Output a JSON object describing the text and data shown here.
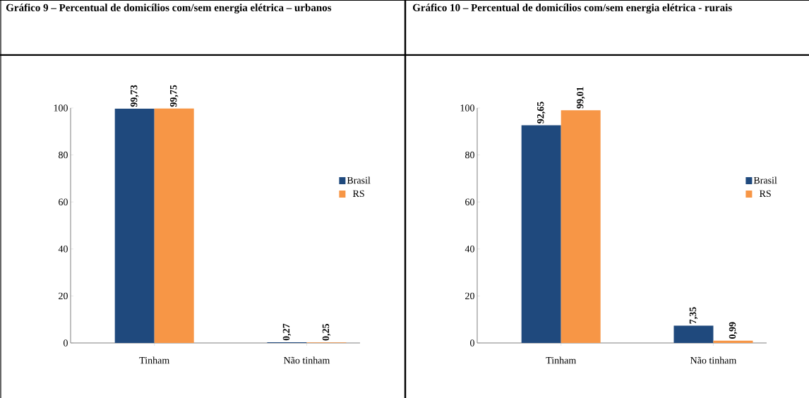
{
  "chart_data": [
    {
      "type": "bar",
      "title": "Gráfico 9 – Percentual de domicílios com/sem energia elétrica – urbanos",
      "categories": [
        "Tinham",
        "Não tinham"
      ],
      "series": [
        {
          "name": "Brasil",
          "color": "#1f497d",
          "values": [
            99.73,
            0.27
          ],
          "value_labels": [
            "99,73",
            "0,27"
          ]
        },
        {
          "name": "RS",
          "color": "#f79646",
          "values": [
            99.75,
            0.25
          ],
          "value_labels": [
            "99,75",
            "0,25"
          ]
        }
      ],
      "ylim": [
        0,
        100
      ],
      "yticks": [
        0,
        20,
        40,
        60,
        80,
        100
      ],
      "legend": "right"
    },
    {
      "type": "bar",
      "title": "Gráfico 10 – Percentual de domicílios com/sem energia elétrica - rurais",
      "categories": [
        "Tinham",
        "Não tinham"
      ],
      "series": [
        {
          "name": "Brasil",
          "color": "#1f497d",
          "values": [
            92.65,
            7.35
          ],
          "value_labels": [
            "92,65",
            "7,35"
          ]
        },
        {
          "name": "RS",
          "color": "#f79646",
          "values": [
            99.01,
            0.99
          ],
          "value_labels": [
            "99,01",
            "0,99"
          ]
        }
      ],
      "ylim": [
        0,
        100
      ],
      "yticks": [
        0,
        20,
        40,
        60,
        80,
        100
      ],
      "legend": "right"
    }
  ]
}
